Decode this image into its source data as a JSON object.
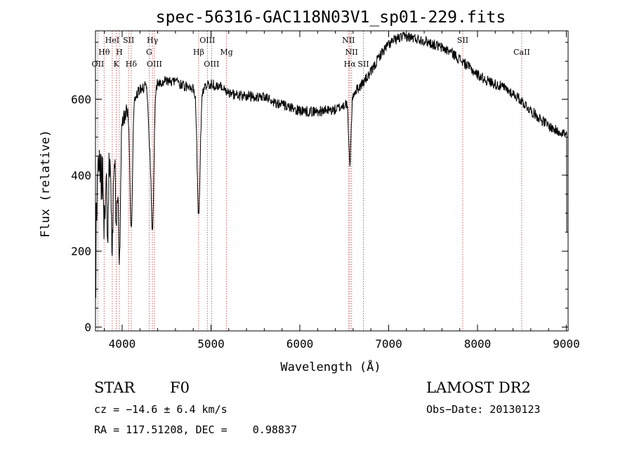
{
  "chart_data": {
    "type": "line",
    "title": "spec-56316-GAC118N03V1_sp01-229.fits",
    "xlabel": "Wavelength (Å)",
    "ylabel": "Flux (relative)",
    "xlim": [
      3700,
      9020
    ],
    "ylim": [
      -10,
      780
    ],
    "xticks": [
      4000,
      5000,
      6000,
      7000,
      8000,
      9000
    ],
    "yticks": [
      0,
      200,
      400,
      600
    ],
    "grid": false,
    "line_color": "#000000",
    "marker_color": "#c0504d",
    "spectral_lines": [
      {
        "label": "OII",
        "wavelength": 3727,
        "row": 3
      },
      {
        "label": "Hθ",
        "wavelength": 3797,
        "row": 2
      },
      {
        "label": "HeI",
        "wavelength": 3889,
        "row": 1
      },
      {
        "label": "K",
        "wavelength": 3934,
        "row": 3
      },
      {
        "label": "H",
        "wavelength": 3968,
        "row": 2
      },
      {
        "label": "SII",
        "wavelength": 4072,
        "row": 1
      },
      {
        "label": "Hδ",
        "wavelength": 4102,
        "row": 3
      },
      {
        "label": "G",
        "wavelength": 4304,
        "row": 2
      },
      {
        "label": "Hγ",
        "wavelength": 4341,
        "row": 1
      },
      {
        "label": "OIII",
        "wavelength": 4363,
        "row": 3
      },
      {
        "label": "Hβ",
        "wavelength": 4861,
        "row": 2
      },
      {
        "label": "OIII",
        "wavelength": 4959,
        "row": 1
      },
      {
        "label": "OIII",
        "wavelength": 5007,
        "row": 3
      },
      {
        "label": "Mg",
        "wavelength": 5175,
        "row": 2
      },
      {
        "label": "NII",
        "wavelength": 6548,
        "row": 1
      },
      {
        "label": "Hα",
        "wavelength": 6563,
        "row": 3
      },
      {
        "label": "NII",
        "wavelength": 6583,
        "row": 2
      },
      {
        "label": "SII",
        "wavelength": 6716,
        "row": 3
      },
      {
        "label": "SII",
        "wavelength": 7834,
        "row": 1
      },
      {
        "label": "CaII",
        "wavelength": 8498,
        "row": 2
      }
    ],
    "continuum": [
      [
        3700,
        340
      ],
      [
        3750,
        400
      ],
      [
        3800,
        420
      ],
      [
        3850,
        440
      ],
      [
        3900,
        455
      ],
      [
        3950,
        470
      ],
      [
        4000,
        540
      ],
      [
        4050,
        570
      ],
      [
        4100,
        580
      ],
      [
        4150,
        610
      ],
      [
        4200,
        625
      ],
      [
        4300,
        640
      ],
      [
        4400,
        640
      ],
      [
        4500,
        650
      ],
      [
        4600,
        645
      ],
      [
        4700,
        635
      ],
      [
        4800,
        630
      ],
      [
        4900,
        625
      ],
      [
        5000,
        640
      ],
      [
        5100,
        635
      ],
      [
        5200,
        615
      ],
      [
        5300,
        610
      ],
      [
        5400,
        610
      ],
      [
        5500,
        605
      ],
      [
        5600,
        605
      ],
      [
        5700,
        595
      ],
      [
        5800,
        585
      ],
      [
        5900,
        575
      ],
      [
        6000,
        570
      ],
      [
        6100,
        568
      ],
      [
        6200,
        568
      ],
      [
        6300,
        570
      ],
      [
        6400,
        572
      ],
      [
        6500,
        585
      ],
      [
        6600,
        615
      ],
      [
        6700,
        640
      ],
      [
        6800,
        670
      ],
      [
        6900,
        715
      ],
      [
        7000,
        745
      ],
      [
        7100,
        760
      ],
      [
        7200,
        765
      ],
      [
        7300,
        760
      ],
      [
        7400,
        755
      ],
      [
        7500,
        745
      ],
      [
        7600,
        735
      ],
      [
        7700,
        725
      ],
      [
        7800,
        705
      ],
      [
        7900,
        685
      ],
      [
        8000,
        665
      ],
      [
        8100,
        650
      ],
      [
        8200,
        640
      ],
      [
        8300,
        630
      ],
      [
        8400,
        615
      ],
      [
        8500,
        595
      ],
      [
        8600,
        570
      ],
      [
        8700,
        550
      ],
      [
        8800,
        530
      ],
      [
        8900,
        515
      ],
      [
        8950,
        515
      ],
      [
        9000,
        505
      ]
    ],
    "absorptions": [
      {
        "center": 3797,
        "depth": 150,
        "width": 9
      },
      {
        "center": 3835,
        "depth": 180,
        "width": 9
      },
      {
        "center": 3889,
        "depth": 230,
        "width": 10
      },
      {
        "center": 3934,
        "depth": 200,
        "width": 9
      },
      {
        "center": 3970,
        "depth": 320,
        "width": 11
      },
      {
        "center": 4102,
        "depth": 330,
        "width": 14
      },
      {
        "center": 4304,
        "depth": 120,
        "width": 14
      },
      {
        "center": 4341,
        "depth": 380,
        "width": 16
      },
      {
        "center": 4861,
        "depth": 330,
        "width": 17
      },
      {
        "center": 6563,
        "depth": 170,
        "width": 14
      }
    ],
    "noise_amplitude": 14,
    "blue_noise_amplitude": 90
  },
  "info": {
    "object_class": "STAR",
    "subclass": "F0",
    "survey": "LAMOST DR2",
    "redshift": "cz = −14.6 ± 6.4 km/s",
    "obs_date": "Obs−Date: 20130123",
    "coordinates": "RA = 117.51208, DEC =    0.98837"
  }
}
